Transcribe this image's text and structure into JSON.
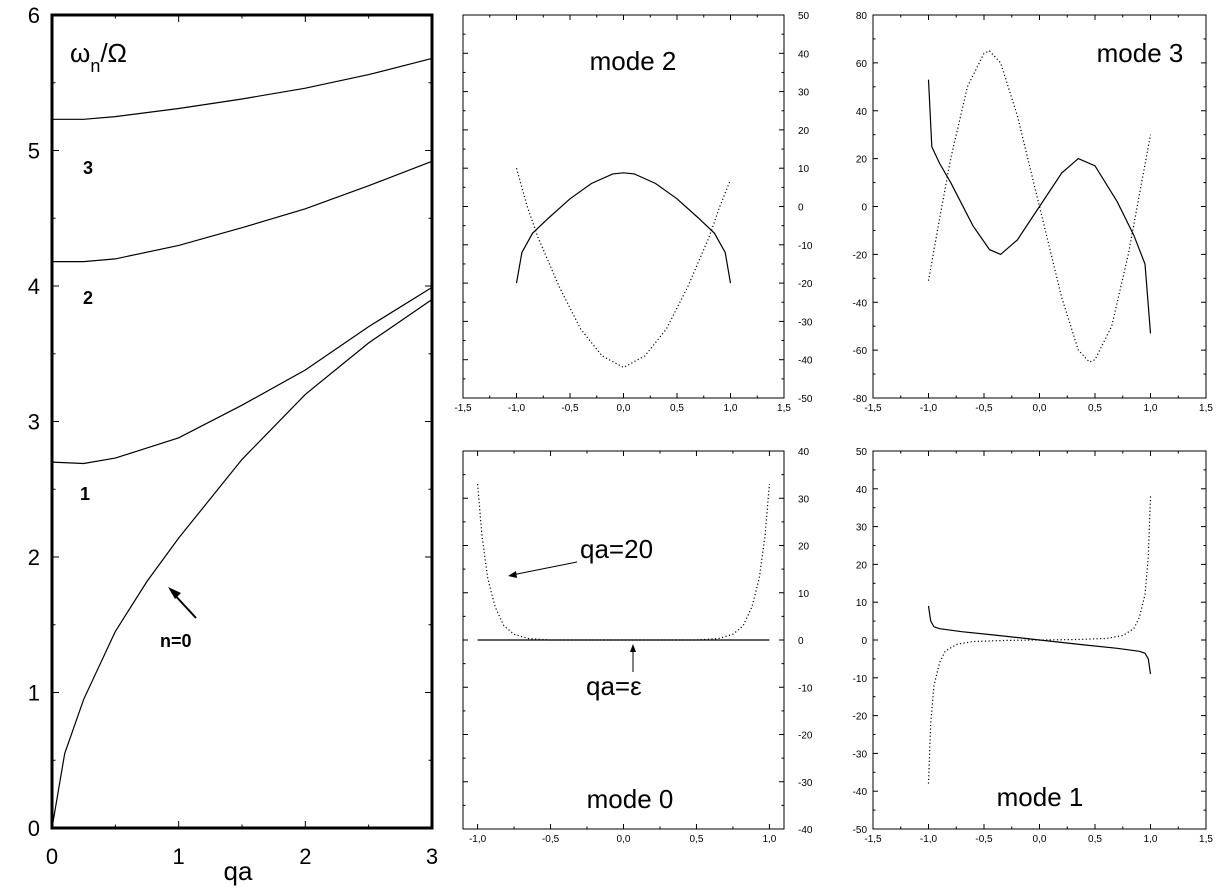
{
  "chart_data": [
    {
      "type": "line",
      "panel": "dispersion",
      "xlabel": "qa",
      "ylabel": "ω_n/Ω",
      "xlim": [
        0,
        3
      ],
      "ylim": [
        0,
        6
      ],
      "x_ticks": [
        "0",
        "1",
        "2",
        "3"
      ],
      "y_ticks": [
        "0",
        "1",
        "2",
        "3",
        "4",
        "5",
        "6"
      ],
      "series": [
        {
          "name": "n=0",
          "x": [
            0,
            0.1,
            0.25,
            0.5,
            0.75,
            1.0,
            1.5,
            2.0,
            2.5,
            3.0
          ],
          "y": [
            0,
            0.55,
            0.95,
            1.45,
            1.82,
            2.14,
            2.72,
            3.2,
            3.58,
            3.9
          ]
        },
        {
          "name": "1",
          "x": [
            0,
            0.25,
            0.5,
            1.0,
            1.5,
            2.0,
            2.5,
            3.0
          ],
          "y": [
            2.7,
            2.69,
            2.73,
            2.88,
            3.12,
            3.38,
            3.7,
            3.99
          ]
        },
        {
          "name": "2",
          "x": [
            0,
            0.25,
            0.5,
            1.0,
            1.5,
            2.0,
            2.5,
            3.0
          ],
          "y": [
            4.18,
            4.18,
            4.2,
            4.3,
            4.43,
            4.57,
            4.74,
            4.92
          ]
        },
        {
          "name": "3",
          "x": [
            0,
            0.25,
            0.5,
            1.0,
            1.5,
            2.0,
            2.5,
            3.0
          ],
          "y": [
            5.23,
            5.23,
            5.25,
            5.31,
            5.38,
            5.46,
            5.56,
            5.68
          ]
        }
      ],
      "curve_labels": [
        "n=0",
        "1",
        "2",
        "3"
      ]
    },
    {
      "type": "line",
      "panel": "mode 2",
      "title": "mode 2",
      "xlim": [
        -1.5,
        1.5
      ],
      "ylim": [
        -50,
        50
      ],
      "x_ticks": [
        "-1,5",
        "-1,0",
        "-0,5",
        "0,0",
        "0,5",
        "1,0",
        "1,5"
      ],
      "y_ticks": [
        "-50",
        "-40",
        "-30",
        "-20",
        "-10",
        "0",
        "10",
        "20",
        "30",
        "40",
        "50"
      ],
      "y_axis_side": "right",
      "series": [
        {
          "style": "solid",
          "x": [
            -1.0,
            -0.95,
            -0.85,
            -0.7,
            -0.5,
            -0.3,
            -0.1,
            0.0,
            0.1,
            0.3,
            0.5,
            0.7,
            0.85,
            0.95,
            1.0
          ],
          "y": [
            -20,
            -12,
            -7,
            -3,
            2,
            6,
            8.5,
            8.8,
            8.5,
            6,
            2,
            -3,
            -7,
            -12,
            -20
          ]
        },
        {
          "style": "dotted",
          "x": [
            -1.0,
            -0.9,
            -0.8,
            -0.6,
            -0.4,
            -0.2,
            0.0,
            0.2,
            0.4,
            0.6,
            0.8,
            0.9,
            1.0
          ],
          "y": [
            10,
            0,
            -8,
            -21,
            -32,
            -39,
            -42,
            -39,
            -32,
            -21,
            -8,
            0,
            7
          ]
        }
      ]
    },
    {
      "type": "line",
      "panel": "mode 3",
      "title": "mode 3",
      "xlim": [
        -1.5,
        1.5
      ],
      "ylim": [
        -80,
        80
      ],
      "x_ticks": [
        "-1,5",
        "-1,0",
        "-0,5",
        "0,0",
        "0,5",
        "1,0",
        "1,5"
      ],
      "y_ticks": [
        "-80",
        "-60",
        "-40",
        "-20",
        "0",
        "20",
        "40",
        "60",
        "80"
      ],
      "y_axis_side": "left",
      "series": [
        {
          "style": "solid",
          "x": [
            -1.0,
            -0.97,
            -0.9,
            -0.8,
            -0.6,
            -0.45,
            -0.35,
            -0.2,
            0.0,
            0.2,
            0.35,
            0.5,
            0.7,
            0.85,
            0.95,
            1.0
          ],
          "y": [
            53,
            25,
            18,
            10,
            -8,
            -18,
            -20,
            -14,
            0,
            14,
            20,
            17,
            2,
            -12,
            -24,
            -53
          ]
        },
        {
          "style": "dotted",
          "x": [
            -1.0,
            -0.9,
            -0.8,
            -0.65,
            -0.5,
            -0.45,
            -0.35,
            -0.2,
            0.0,
            0.2,
            0.35,
            0.45,
            0.5,
            0.65,
            0.8,
            0.9,
            1.0
          ],
          "y": [
            -31,
            -5,
            20,
            50,
            64,
            65,
            60,
            38,
            0,
            -38,
            -60,
            -65,
            -64,
            -50,
            -20,
            5,
            30
          ]
        }
      ]
    },
    {
      "type": "line",
      "panel": "mode 0",
      "title": "mode 0",
      "xlim": [
        -1.1,
        1.1
      ],
      "ylim": [
        -40,
        40
      ],
      "x_ticks": [
        "-1,0",
        "-0,5",
        "0,0",
        "0,5",
        "1,0"
      ],
      "y_ticks": [
        "-40",
        "-30",
        "-20",
        "-10",
        "0",
        "10",
        "20",
        "30",
        "40"
      ],
      "y_axis_side": "right",
      "series": [
        {
          "name": "qa=20",
          "style": "dotted",
          "x": [
            -1.0,
            -0.97,
            -0.93,
            -0.88,
            -0.82,
            -0.75,
            -0.65,
            -0.5,
            0.0,
            0.5,
            0.65,
            0.75,
            0.82,
            0.88,
            0.93,
            0.97,
            1.0
          ],
          "y": [
            33,
            22,
            13,
            7,
            3,
            1.2,
            0.3,
            0,
            0,
            0,
            0.3,
            1.2,
            3,
            7,
            13,
            22,
            33
          ]
        },
        {
          "name": "qa=ε",
          "style": "solid",
          "x": [
            -1.0,
            1.0
          ],
          "y": [
            0,
            0
          ]
        }
      ],
      "annotations": [
        "qa=20",
        "qa=ε"
      ]
    },
    {
      "type": "line",
      "panel": "mode 1",
      "title": "mode 1",
      "xlim": [
        -1.5,
        1.5
      ],
      "ylim": [
        -50,
        50
      ],
      "x_ticks": [
        "-1,5",
        "-1,0",
        "-0,5",
        "0,0",
        "0,5",
        "1,0",
        "1,5"
      ],
      "y_ticks": [
        "-50",
        "-40",
        "-30",
        "-20",
        "-10",
        "0",
        "10",
        "20",
        "30",
        "40",
        "50"
      ],
      "y_axis_side": "left",
      "series": [
        {
          "style": "solid",
          "x": [
            -1.0,
            -0.98,
            -0.95,
            -0.9,
            -0.7,
            -0.4,
            0.0,
            0.4,
            0.7,
            0.9,
            0.95,
            0.98,
            1.0
          ],
          "y": [
            9,
            5,
            3.5,
            3,
            2.2,
            1.3,
            0,
            -1.3,
            -2.2,
            -3,
            -3.5,
            -5,
            -9
          ]
        },
        {
          "style": "dotted",
          "x": [
            -1.0,
            -0.98,
            -0.95,
            -0.9,
            -0.85,
            -0.75,
            -0.6,
            -0.3,
            0.0,
            0.3,
            0.6,
            0.75,
            0.85,
            0.9,
            0.95,
            0.98,
            1.0
          ],
          "y": [
            -38,
            -22,
            -12,
            -6,
            -3,
            -1.2,
            -0.4,
            -0.1,
            0,
            0.1,
            0.4,
            1.2,
            3,
            6,
            12,
            22,
            38
          ]
        }
      ]
    }
  ]
}
